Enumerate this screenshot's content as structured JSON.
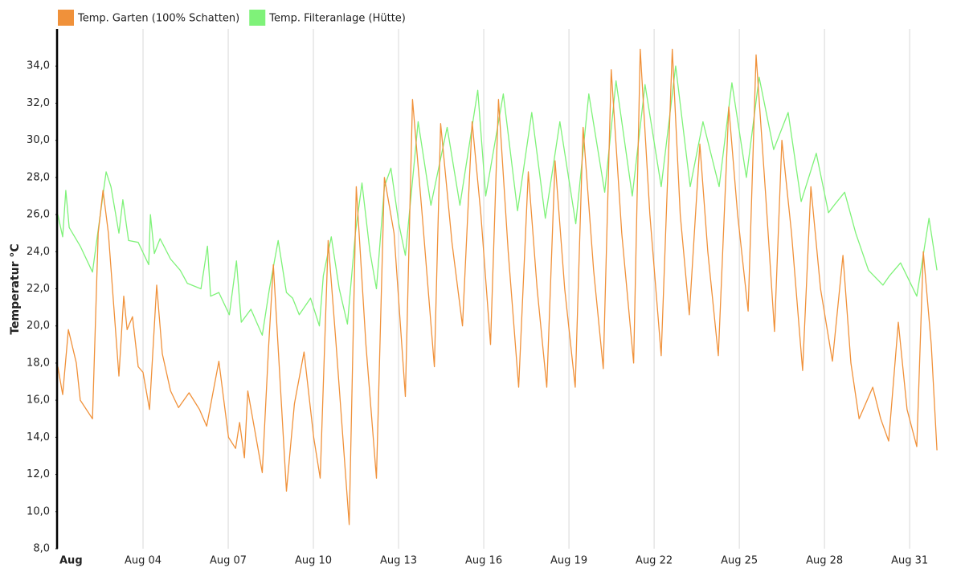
{
  "chart_data": {
    "type": "line",
    "ylabel": "Temperatur °C",
    "ylim": [
      8,
      36
    ],
    "yticks": [
      {
        "value": 8,
        "label": "8,0"
      },
      {
        "value": 10,
        "label": "10,0"
      },
      {
        "value": 12,
        "label": "12,0"
      },
      {
        "value": 14,
        "label": "14,0"
      },
      {
        "value": 16,
        "label": "16,0"
      },
      {
        "value": 18,
        "label": "18,0"
      },
      {
        "value": 20,
        "label": "20,0"
      },
      {
        "value": 22,
        "label": "22,0"
      },
      {
        "value": 24,
        "label": "24,0"
      },
      {
        "value": 26,
        "label": "26,0"
      },
      {
        "value": 28,
        "label": "28,0"
      },
      {
        "value": 30,
        "label": "30,0"
      },
      {
        "value": 32,
        "label": "32,0"
      },
      {
        "value": 34,
        "label": "34,0"
      }
    ],
    "xlim": [
      1,
      32.1
    ],
    "xticks": [
      {
        "value": 1,
        "label": "Aug"
      },
      {
        "value": 4,
        "label": "Aug 04"
      },
      {
        "value": 7,
        "label": "Aug 07"
      },
      {
        "value": 10,
        "label": "Aug 10"
      },
      {
        "value": 13,
        "label": "Aug 13"
      },
      {
        "value": 16,
        "label": "Aug 16"
      },
      {
        "value": 19,
        "label": "Aug 19"
      },
      {
        "value": 22,
        "label": "Aug 22"
      },
      {
        "value": 25,
        "label": "Aug 25"
      },
      {
        "value": 28,
        "label": "Aug 28"
      },
      {
        "value": 31,
        "label": "Aug 31"
      }
    ],
    "grid": "x",
    "legend": "top-left",
    "series": [
      {
        "name": "Temp. Garten (100% Schatten)",
        "color": "#f0913a",
        "x": [
          1.0,
          1.17,
          1.37,
          1.65,
          1.79,
          2.22,
          2.42,
          2.59,
          2.78,
          3.15,
          3.32,
          3.44,
          3.63,
          3.83,
          4.0,
          4.23,
          4.48,
          4.68,
          4.97,
          5.25,
          5.62,
          5.99,
          6.24,
          6.67,
          7.01,
          7.26,
          7.4,
          7.57,
          7.69,
          8.2,
          8.42,
          8.59,
          8.79,
          9.05,
          9.33,
          9.67,
          10.01,
          10.24,
          10.52,
          10.8,
          11.26,
          11.51,
          11.85,
          12.22,
          12.5,
          12.84,
          13.24,
          13.49,
          13.83,
          14.26,
          14.48,
          14.88,
          15.25,
          15.59,
          15.9,
          16.24,
          16.52,
          16.86,
          17.23,
          17.57,
          17.88,
          18.22,
          18.51,
          18.85,
          19.22,
          19.5,
          19.87,
          20.21,
          20.49,
          20.86,
          21.28,
          21.51,
          21.85,
          22.25,
          22.64,
          22.92,
          23.24,
          23.61,
          23.89,
          24.26,
          24.63,
          24.94,
          25.31,
          25.59,
          25.93,
          26.24,
          26.5,
          26.84,
          27.23,
          27.52,
          27.86,
          28.28,
          28.65,
          28.93,
          29.22,
          29.7,
          29.98,
          30.26,
          30.6,
          30.91,
          31.25,
          31.48,
          31.76,
          31.96
        ],
        "values": [
          17.8,
          16.3,
          19.8,
          18,
          16,
          15,
          25,
          27.3,
          25,
          17.3,
          21.6,
          19.8,
          20.5,
          17.8,
          17.5,
          15.5,
          22.2,
          18.5,
          16.5,
          15.6,
          16.4,
          15.5,
          14.6,
          18.1,
          14,
          13.4,
          14.8,
          12.9,
          16.5,
          12.1,
          18.8,
          23.3,
          18,
          11.1,
          15.8,
          18.6,
          14,
          11.8,
          24.6,
          19,
          9.3,
          27.5,
          19,
          11.8,
          28,
          25,
          16.2,
          32.2,
          26,
          17.8,
          30.9,
          24.5,
          20,
          31,
          26,
          19,
          32.2,
          24,
          16.7,
          28.3,
          22,
          16.7,
          28.9,
          22,
          16.7,
          30.7,
          23,
          17.7,
          33.8,
          25,
          18,
          34.9,
          26,
          18.4,
          34.9,
          26,
          20.6,
          29.8,
          24,
          18.4,
          31.8,
          26,
          20.8,
          34.6,
          27,
          19.7,
          30,
          25,
          17.6,
          27.5,
          22,
          18.1,
          23.8,
          18,
          15,
          16.7,
          15,
          13.8,
          20.2,
          15.5,
          13.5,
          24,
          19,
          13.3
        ]
      },
      {
        "name": "Temp. Filteranlage (Hütte)",
        "color": "#7ff279",
        "x": [
          1.0,
          1.17,
          1.28,
          1.4,
          1.79,
          2.22,
          2.36,
          2.7,
          2.87,
          3.15,
          3.29,
          3.49,
          3.83,
          4.2,
          4.26,
          4.4,
          4.6,
          4.97,
          5.31,
          5.56,
          6.04,
          6.27,
          6.38,
          6.67,
          7.04,
          7.29,
          7.46,
          7.8,
          8.2,
          8.45,
          8.76,
          9.05,
          9.27,
          9.5,
          9.9,
          10.21,
          10.35,
          10.63,
          10.91,
          11.2,
          11.48,
          11.71,
          11.99,
          12.22,
          12.5,
          12.73,
          13.01,
          13.24,
          13.69,
          14.14,
          14.71,
          15.16,
          15.79,
          16.07,
          16.69,
          17.19,
          17.69,
          18.17,
          18.68,
          19.24,
          19.7,
          20.26,
          20.66,
          21.23,
          21.68,
          22.25,
          22.76,
          23.27,
          23.72,
          24.29,
          24.74,
          25.25,
          25.7,
          26.21,
          26.72,
          27.18,
          27.71,
          28.14,
          28.34,
          28.71,
          29.1,
          29.55,
          30.06,
          30.29,
          30.68,
          31.25,
          31.68,
          31.96
        ],
        "values": [
          26,
          24.8,
          27.3,
          25.3,
          24.3,
          22.9,
          24.5,
          28.3,
          27.5,
          25,
          26.8,
          24.6,
          24.5,
          23.3,
          26,
          23.9,
          24.7,
          23.6,
          23,
          22.3,
          22,
          24.3,
          21.6,
          21.8,
          20.6,
          23.5,
          20.2,
          20.9,
          19.5,
          22,
          24.6,
          21.8,
          21.5,
          20.6,
          21.5,
          20,
          22.7,
          24.8,
          22,
          20.1,
          25,
          27.7,
          24,
          22,
          27.5,
          28.5,
          25.5,
          23.8,
          31,
          26.5,
          30.7,
          26.5,
          32.7,
          27,
          32.5,
          26.2,
          31.5,
          25.8,
          31,
          25.5,
          32.5,
          27.2,
          33.2,
          27,
          33,
          27.5,
          34,
          27.5,
          31,
          27.5,
          33.1,
          28,
          33.4,
          29.5,
          31.5,
          26.7,
          29.3,
          26.1,
          26.5,
          27.2,
          25,
          23,
          22.2,
          22.7,
          23.4,
          21.6,
          25.8,
          23
        ]
      }
    ]
  }
}
